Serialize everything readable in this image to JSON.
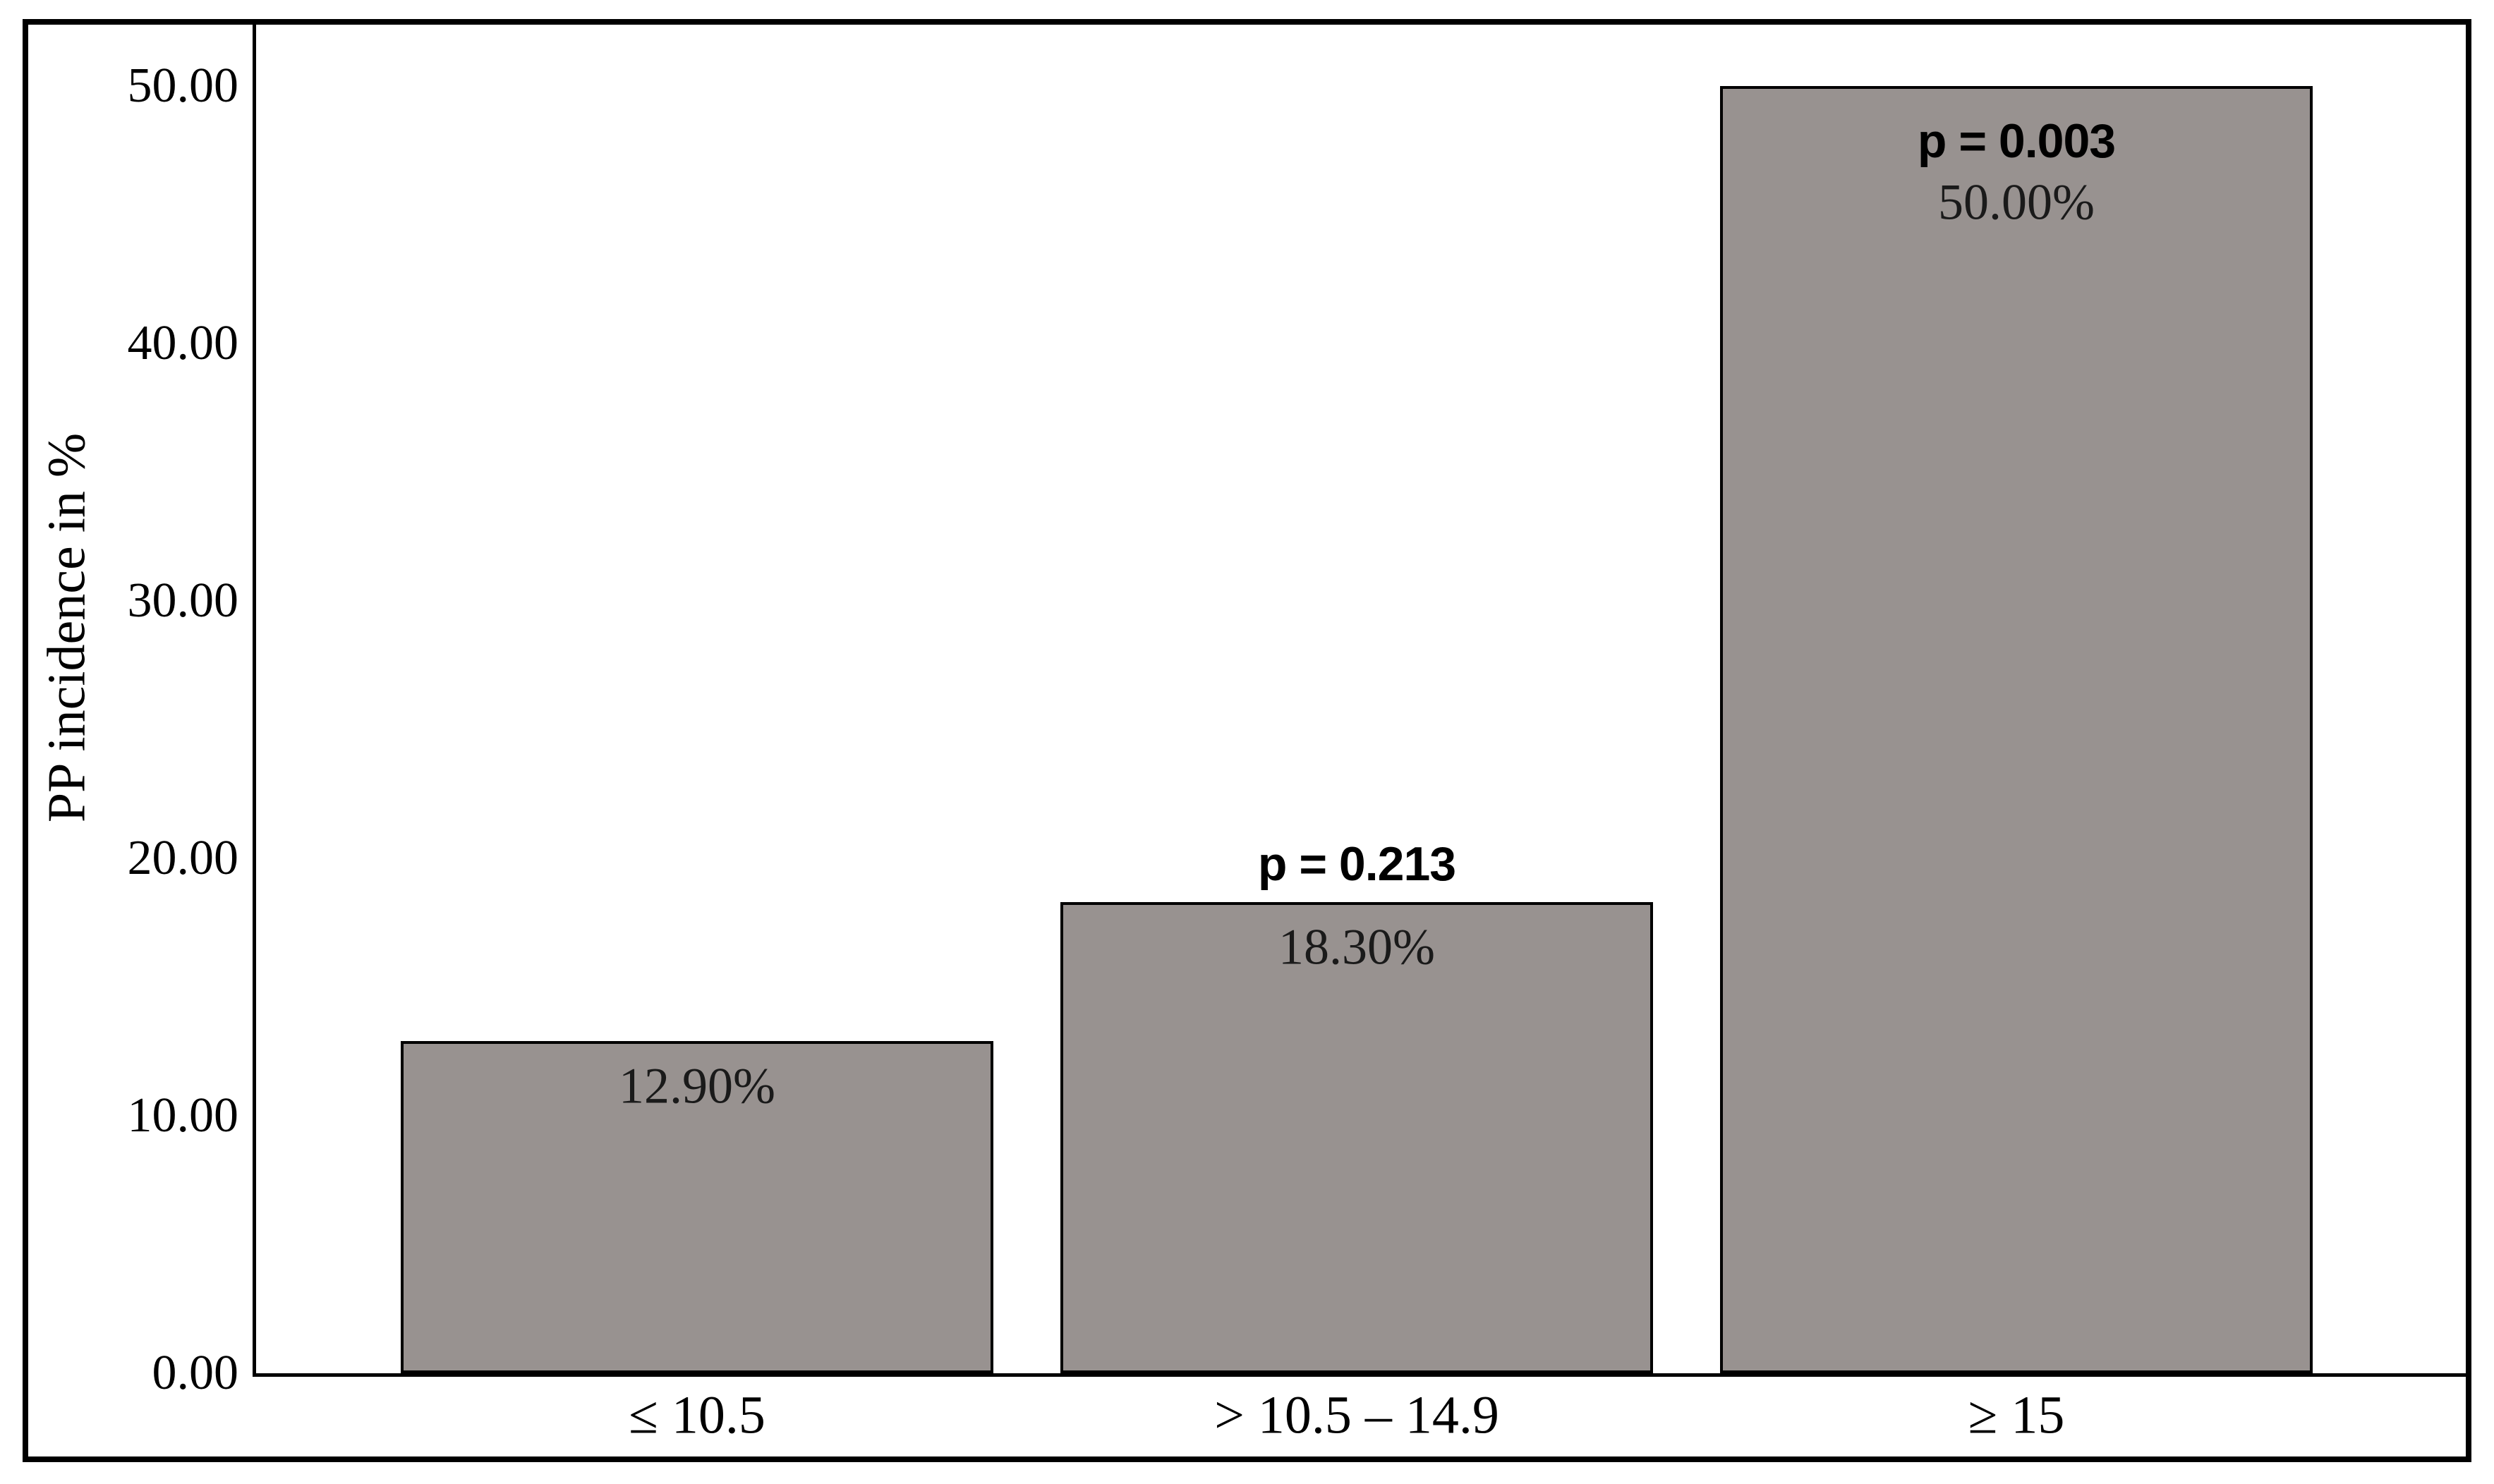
{
  "figure": {
    "background": "#ffffff",
    "frame_border_color": "#000000",
    "axis_line_color": "#000000",
    "text_color": "#000000",
    "value_label_color": "#1a1a1a"
  },
  "chart_data": {
    "type": "bar",
    "title": "",
    "xlabel": "",
    "ylabel": "PP incidence in %",
    "ylim": [
      0,
      50
    ],
    "grid": false,
    "legend": null,
    "bar_fill": "#989290",
    "bar_border": "#000000",
    "yticks": [
      {
        "value": 0,
        "label": "0.00"
      },
      {
        "value": 10,
        "label": "10.00"
      },
      {
        "value": 20,
        "label": "20.00"
      },
      {
        "value": 30,
        "label": "30.00"
      },
      {
        "value": 40,
        "label": "40.00"
      },
      {
        "value": 50,
        "label": "50.00"
      }
    ],
    "categories": [
      "≤ 10.5",
      "> 10.5 – 14.9",
      "≥ 15"
    ],
    "values": [
      12.9,
      18.3,
      50.0
    ],
    "bars": [
      {
        "category": "≤ 10.5",
        "value": 12.9,
        "value_label": "12.90%",
        "p_label": null,
        "p_position": null
      },
      {
        "category": "> 10.5 – 14.9",
        "value": 18.3,
        "value_label": "18.30%",
        "p_label": "p = 0.213",
        "p_position": "above"
      },
      {
        "category": "≥ 15",
        "value": 50.0,
        "value_label": "50.00%",
        "p_label": "p = 0.003",
        "p_position": "inside"
      }
    ]
  }
}
